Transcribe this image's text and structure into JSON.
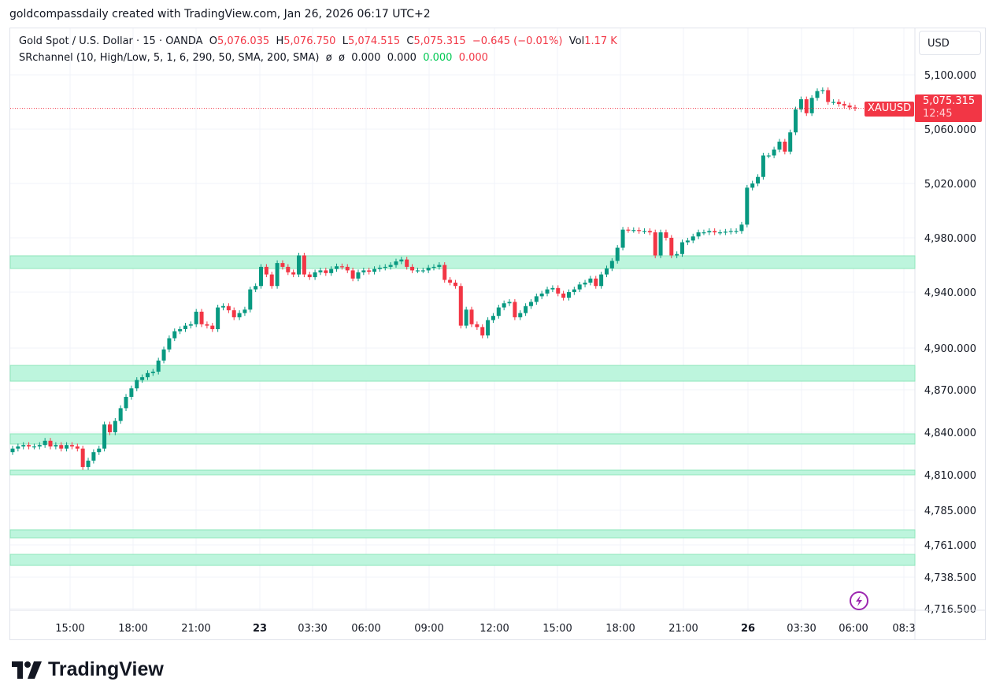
{
  "credit": "goldcompassdaily created with TradingView.com, Jan 26, 2026 06:17 UTC+2",
  "legend": {
    "symbol": "Gold Spot / U.S. Dollar · 15 · OANDA",
    "o_label": "O",
    "o": "5,076.035",
    "h_label": "H",
    "h": "5,076.750",
    "l_label": "L",
    "l": "5,074.515",
    "c_label": "C",
    "c": "5,075.315",
    "change": "−0.645 (−0.01%)",
    "vol_label": "Vol",
    "vol": "1.17 K",
    "indicator": "SRchannel (10, High/Low, 5, 1, 6, 290, 50, SMA, 200, SMA)",
    "ind_v1": "ø",
    "ind_v2": "ø",
    "ind_v3": "0.000",
    "ind_v4": "0.000",
    "ind_v5": "0.000",
    "ind_v6": "0.000"
  },
  "currency_button": "USD",
  "symbol_label": "XAUUSD",
  "last_price": "5,075.315",
  "countdown": "12:45",
  "brand": "TradingView",
  "colors": {
    "up": "#089981",
    "down": "#f23645",
    "zone_fill": "#bdf5dd",
    "zone_border": "#8ee6bb",
    "grid": "#f0f3fa"
  },
  "chart_data": {
    "type": "candlestick",
    "title": "Gold Spot / U.S. Dollar · 15 · OANDA",
    "interval_minutes": 15,
    "ylim": [
      4715.4,
      5133.9
    ],
    "y_ticks": [
      "5,100.000",
      "5,060.000",
      "5,020.000",
      "4,980.000",
      "4,940.000",
      "4,900.000",
      "4,870.000",
      "4,840.000",
      "4,810.000",
      "4,785.000",
      "4,761.000",
      "4,738.500",
      "4,716.500"
    ],
    "y_tick_values": [
      5100,
      5060,
      5020,
      4980,
      4940,
      4900,
      4870,
      4840,
      4810,
      4785,
      4761,
      4738.5,
      4716.5
    ],
    "x_ticks": [
      {
        "label": "15:00",
        "bold": false
      },
      {
        "label": "18:00",
        "bold": false
      },
      {
        "label": "21:00",
        "bold": false
      },
      {
        "label": "23",
        "bold": true
      },
      {
        "label": "03:30",
        "bold": false
      },
      {
        "label": "06:00",
        "bold": false
      },
      {
        "label": "09:00",
        "bold": false
      },
      {
        "label": "12:00",
        "bold": false
      },
      {
        "label": "15:00",
        "bold": false
      },
      {
        "label": "18:00",
        "bold": false
      },
      {
        "label": "21:00",
        "bold": false
      },
      {
        "label": "26",
        "bold": true
      },
      {
        "label": "03:30",
        "bold": false
      },
      {
        "label": "06:00",
        "bold": false
      },
      {
        "label": "08:3",
        "bold": false
      }
    ],
    "first_open": 4826,
    "closes": [
      4828.5,
      4830,
      4831,
      4830,
      4830,
      4831,
      4834,
      4830,
      4831,
      4828.5,
      4831,
      4830,
      4828.5,
      4815.5,
      4820,
      4826,
      4828.5,
      4845.5,
      4840,
      4848,
      4857,
      4865,
      4871,
      4877,
      4879,
      4882,
      4883,
      4891,
      4899,
      4907,
      4912,
      4913.5,
      4916,
      4917,
      4926,
      4917,
      4916,
      4913.5,
      4929,
      4930,
      4927,
      4922,
      4925,
      4927.5,
      4942,
      4944.5,
      4958.6,
      4953,
      4944.5,
      4961.4,
      4958.6,
      4954.6,
      4953,
      4967,
      4953,
      4951,
      4954.6,
      4956,
      4954,
      4957,
      4959,
      4958.6,
      4956,
      4950,
      4954.6,
      4956,
      4955,
      4957,
      4958,
      4958.6,
      4960,
      4962.6,
      4964,
      4958.6,
      4956,
      4956,
      4956,
      4958,
      4958.6,
      4960,
      4949,
      4947,
      4944.5,
      4916,
      4927.5,
      4917,
      4915,
      4909,
      4920,
      4923,
      4929,
      4932,
      4933,
      4922,
      4925,
      4930,
      4933,
      4937,
      4939,
      4942,
      4943,
      4939,
      4936,
      4940,
      4942,
      4945.6,
      4947,
      4950,
      4944.5,
      4953,
      4957.5,
      4963,
      4972.7,
      4986,
      4985.7,
      4985.7,
      4985,
      4985,
      4984,
      4967,
      4984,
      4980,
      4967,
      4968,
      4976.7,
      4978,
      4981,
      4984,
      4984,
      4985,
      4984,
      4984,
      4984.5,
      4985,
      4985,
      4989.7,
      5016.9,
      5020,
      5024.8,
      5040.6,
      5040.6,
      5045,
      5050.8,
      5043.4,
      5057.6,
      5074.5,
      5082,
      5071.7,
      5083,
      5088,
      5088.7,
      5080,
      5080,
      5078.5,
      5077.4,
      5076,
      5075.315
    ],
    "wick": 2,
    "last_price": 5075.315,
    "sr_zones": [
      [
        4957.4,
        4966.7
      ],
      [
        4876.2,
        4887.5
      ],
      [
        4831.7,
        4838.9
      ],
      [
        4810,
        4813.3
      ],
      [
        4765.9,
        4771.4
      ],
      [
        4746.7,
        4754.4
      ]
    ]
  }
}
